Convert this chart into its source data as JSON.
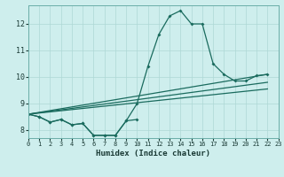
{
  "xlabel": "Humidex (Indice chaleur)",
  "background_color": "#ceeeed",
  "grid_color": "#aed8d5",
  "line_color": "#1a6b5e",
  "xlim": [
    0,
    23
  ],
  "ylim": [
    7.7,
    12.7
  ],
  "xticks": [
    0,
    1,
    2,
    3,
    4,
    5,
    6,
    7,
    8,
    9,
    10,
    11,
    12,
    13,
    14,
    15,
    16,
    17,
    18,
    19,
    20,
    21,
    22,
    23
  ],
  "yticks": [
    8,
    9,
    10,
    11,
    12
  ],
  "line_main": {
    "x": [
      0,
      1,
      2,
      3,
      4,
      5,
      6,
      7,
      8,
      9,
      10,
      11,
      12,
      13,
      14,
      15,
      16,
      17,
      18,
      19,
      20,
      21,
      22
    ],
    "y": [
      8.6,
      8.5,
      8.3,
      8.4,
      8.2,
      8.25,
      7.8,
      7.8,
      7.8,
      8.35,
      9.0,
      10.4,
      11.6,
      12.3,
      12.5,
      12.0,
      12.0,
      10.5,
      10.1,
      9.85,
      9.85,
      10.05,
      10.1
    ]
  },
  "line_lower": {
    "x": [
      0,
      1,
      2,
      3,
      4,
      5,
      6,
      7,
      8,
      9,
      10
    ],
    "y": [
      8.6,
      8.5,
      8.3,
      8.4,
      8.2,
      8.25,
      7.8,
      7.8,
      7.8,
      8.35,
      8.4
    ]
  },
  "trend_lines": [
    {
      "x": [
        0,
        22
      ],
      "y": [
        8.6,
        10.1
      ]
    },
    {
      "x": [
        0,
        22
      ],
      "y": [
        8.6,
        9.8
      ]
    },
    {
      "x": [
        0,
        22
      ],
      "y": [
        8.6,
        9.55
      ]
    }
  ]
}
